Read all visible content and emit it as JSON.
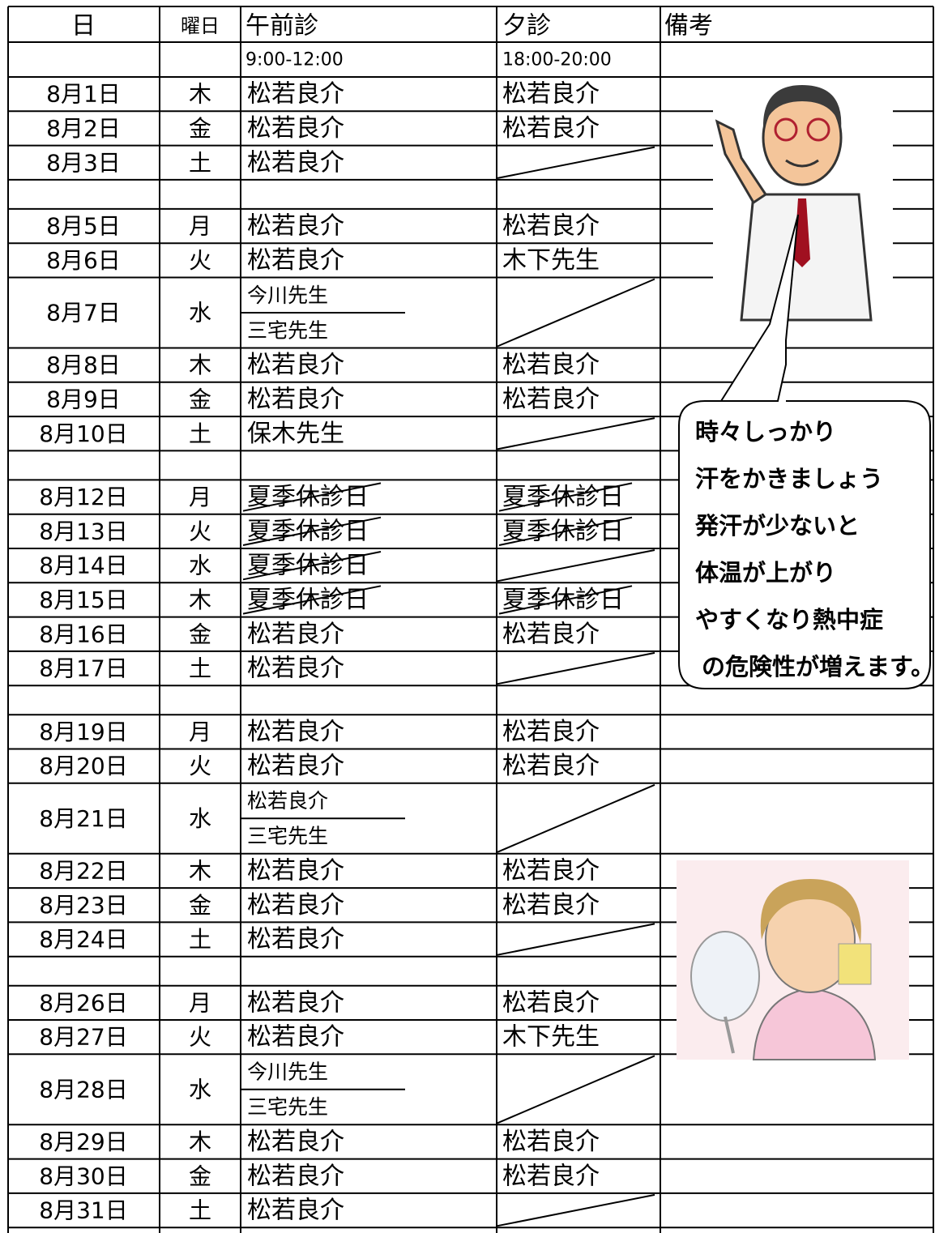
{
  "header": {
    "date": "日",
    "weekday": "曜日",
    "morning": "午前診",
    "evening": "夕診",
    "notes": "備考"
  },
  "hours": {
    "morning": "9:00-12:00",
    "evening": "18:00-20:00"
  },
  "rows": [
    {
      "date": "8月1日",
      "weekday": "木",
      "morning": [
        {
          "text": "松若良介"
        }
      ],
      "evening": {
        "text": "松若良介"
      }
    },
    {
      "date": "8月2日",
      "weekday": "金",
      "morning": [
        {
          "text": "松若良介"
        }
      ],
      "evening": {
        "text": "松若良介"
      }
    },
    {
      "date": "8月3日",
      "weekday": "土",
      "morning": [
        {
          "text": "松若良介"
        }
      ],
      "evening": null
    },
    {
      "date": null,
      "weekday": null,
      "morning": null,
      "evening": null
    },
    {
      "date": "8月5日",
      "weekday": "月",
      "morning": [
        {
          "text": "松若良介"
        }
      ],
      "evening": {
        "text": "松若良介"
      }
    },
    {
      "date": "8月6日",
      "weekday": "火",
      "morning": [
        {
          "text": "松若良介"
        }
      ],
      "evening": {
        "text": "木下先生",
        "color": "#1f6fc0"
      }
    },
    {
      "date": "8月7日",
      "weekday": "水",
      "morning": [
        {
          "text": "今川先生",
          "color": "#9c5a14"
        },
        {
          "text": "三宅先生",
          "color": "#ff0000"
        }
      ],
      "evening": null
    },
    {
      "date": "8月8日",
      "weekday": "木",
      "morning": [
        {
          "text": "松若良介"
        }
      ],
      "evening": {
        "text": "松若良介"
      }
    },
    {
      "date": "8月9日",
      "weekday": "金",
      "morning": [
        {
          "text": "松若良介"
        }
      ],
      "evening": {
        "text": "松若良介"
      }
    },
    {
      "date": "8月10日",
      "weekday": "土",
      "morning": [
        {
          "text": "保木先生",
          "color": "#22dd22"
        }
      ],
      "evening": null
    },
    {
      "date": null,
      "weekday": null,
      "morning": null,
      "evening": null
    },
    {
      "date": "8月12日",
      "weekday": "月",
      "morning": [
        {
          "text": "夏季休診日",
          "color": "#ff0000",
          "struck": true
        }
      ],
      "evening": {
        "text": "夏季休診日",
        "color": "#ff0000",
        "struck": true
      }
    },
    {
      "date": "8月13日",
      "weekday": "火",
      "morning": [
        {
          "text": "夏季休診日",
          "color": "#ff0000",
          "struck": true
        }
      ],
      "evening": {
        "text": "夏季休診日",
        "color": "#ff0000",
        "struck": true
      }
    },
    {
      "date": "8月14日",
      "weekday": "水",
      "morning": [
        {
          "text": "夏季休診日",
          "color": "#ff0000",
          "struck": true
        }
      ],
      "evening": null
    },
    {
      "date": "8月15日",
      "weekday": "木",
      "morning": [
        {
          "text": "夏季休診日",
          "color": "#ff0000",
          "struck": true
        }
      ],
      "evening": {
        "text": "夏季休診日",
        "color": "#ff0000",
        "struck": true
      }
    },
    {
      "date": "8月16日",
      "weekday": "金",
      "morning": [
        {
          "text": "松若良介"
        }
      ],
      "evening": {
        "text": "松若良介"
      }
    },
    {
      "date": "8月17日",
      "weekday": "土",
      "morning": [
        {
          "text": "松若良介"
        }
      ],
      "evening": null
    },
    {
      "date": null,
      "weekday": null,
      "morning": null,
      "evening": null
    },
    {
      "date": "8月19日",
      "weekday": "月",
      "morning": [
        {
          "text": "松若良介"
        }
      ],
      "evening": {
        "text": "松若良介"
      }
    },
    {
      "date": "8月20日",
      "weekday": "火",
      "morning": [
        {
          "text": "松若良介"
        }
      ],
      "evening": {
        "text": "松若良介"
      }
    },
    {
      "date": "8月21日",
      "weekday": "水",
      "morning": [
        {
          "text": "松若良介"
        },
        {
          "text": "三宅先生",
          "color": "#ff0000"
        }
      ],
      "evening": null
    },
    {
      "date": "8月22日",
      "weekday": "木",
      "morning": [
        {
          "text": "松若良介"
        }
      ],
      "evening": {
        "text": "松若良介"
      }
    },
    {
      "date": "8月23日",
      "weekday": "金",
      "morning": [
        {
          "text": "松若良介"
        }
      ],
      "evening": {
        "text": "松若良介"
      }
    },
    {
      "date": "8月24日",
      "weekday": "土",
      "morning": [
        {
          "text": "松若良介"
        }
      ],
      "evening": null
    },
    {
      "date": null,
      "weekday": null,
      "morning": null,
      "evening": null
    },
    {
      "date": "8月26日",
      "weekday": "月",
      "morning": [
        {
          "text": "松若良介"
        }
      ],
      "evening": {
        "text": "松若良介"
      }
    },
    {
      "date": "8月27日",
      "weekday": "火",
      "morning": [
        {
          "text": "松若良介"
        }
      ],
      "evening": {
        "text": "木下先生",
        "color": "#1f6fc0"
      }
    },
    {
      "date": "8月28日",
      "weekday": "水",
      "morning": [
        {
          "text": "今川先生",
          "color": "#9c5a14"
        },
        {
          "text": "三宅先生",
          "color": "#ff0000"
        }
      ],
      "evening": null
    },
    {
      "date": "8月29日",
      "weekday": "木",
      "morning": [
        {
          "text": "松若良介"
        }
      ],
      "evening": {
        "text": "松若良介"
      }
    },
    {
      "date": "8月30日",
      "weekday": "金",
      "morning": [
        {
          "text": "松若良介"
        }
      ],
      "evening": {
        "text": "松若良介"
      }
    },
    {
      "date": "8月31日",
      "weekday": "土",
      "morning": [
        {
          "text": "松若良介"
        }
      ],
      "evening": null
    }
  ],
  "speech_bubble": [
    "時々しっかり",
    "汗をかきましょう",
    "発汗が少ないと",
    "体温が上がり",
    "やすくなり熱中症",
    "の危険性が増えます。"
  ]
}
